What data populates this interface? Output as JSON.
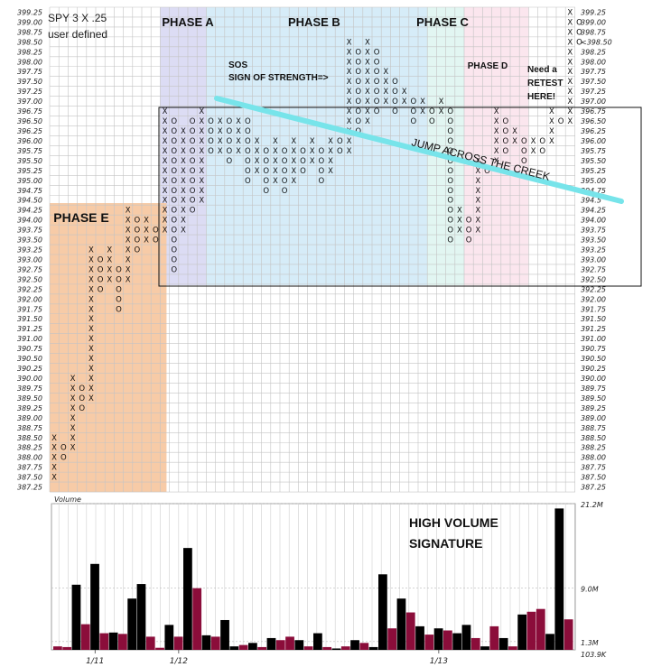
{
  "header": {
    "symbol_line": "SPY 3 X .25",
    "method_line": "user defined"
  },
  "colors": {
    "phase_a": "#dcdcf4",
    "phase_b": "#d6ecf8",
    "phase_c": "#e2f6f2",
    "phase_d": "#fbe6ee",
    "phase_e": "#f7cba7",
    "trendline": "#77e4ea",
    "volume_up": "#000000",
    "volume_down": "#8b0d3a",
    "current_price": "#cc2244"
  },
  "chart_data": [
    {
      "type": "point-and-figure",
      "box_size": 0.25,
      "reversal": 3,
      "y_ticks": [
        "399.25",
        "399.00",
        "398.75",
        "398.50",
        "398.25",
        "398.00",
        "397.75",
        "397.50",
        "397.25",
        "397.00",
        "396.75",
        "396.50",
        "396.25",
        "396.00",
        "395.75",
        "395.50",
        "395.25",
        "395.00",
        "394.75",
        "394.50",
        "394.25",
        "394.00",
        "393.75",
        "393.50",
        "393.25",
        "393.00",
        "392.75",
        "392.50",
        "392.25",
        "392.00",
        "391.75",
        "391.50",
        "391.25",
        "391.00",
        "390.75",
        "390.50",
        "390.25",
        "390.00",
        "389.75",
        "389.50",
        "389.25",
        "389.00",
        "388.75",
        "388.50",
        "388.25",
        "388.00",
        "387.75",
        "387.50",
        "387.25"
      ],
      "right_ticks": [
        "399.25",
        "399.00",
        "398.75",
        "<398.50",
        "398.25",
        "398.00",
        "397.75",
        "397.50",
        "397.25",
        "397.00",
        "396.75",
        "396.50",
        "396.25",
        "396.00",
        "395.75",
        "395.50",
        "395.25",
        "395.00",
        "394.75",
        "394.5",
        "394.25",
        "394.00",
        "393.75",
        "393.50",
        "393.25",
        "393.00",
        "392.75",
        "392.50",
        "392.25",
        "392.00",
        "391.75",
        "391.50",
        "391.25",
        "391.00",
        "390.75",
        "390.50",
        "390.25",
        "390.00",
        "389.75",
        "389.50",
        "389.25",
        "389.00",
        "388.75",
        "388.50",
        "388.25",
        "388.00",
        "387.75",
        "387.50",
        "387.25"
      ],
      "ylim": [
        387.25,
        399.25
      ],
      "current_price": "398.50",
      "columns": [
        {
          "type": "X",
          "low": 387.5,
          "high": 388.5
        },
        {
          "type": "O",
          "low": 388.0,
          "high": 388.25
        },
        {
          "type": "X",
          "low": 388.25,
          "high": 390.0
        },
        {
          "type": "O",
          "low": 389.25,
          "high": 389.75
        },
        {
          "type": "X",
          "low": 389.5,
          "high": 393.25
        },
        {
          "type": "O",
          "low": 392.25,
          "high": 393.0
        },
        {
          "type": "X",
          "low": 392.5,
          "high": 393.25
        },
        {
          "type": "O",
          "low": 391.75,
          "high": 392.75
        },
        {
          "type": "X",
          "low": 392.5,
          "high": 394.25
        },
        {
          "type": "O",
          "low": 393.25,
          "high": 394.0
        },
        {
          "type": "X",
          "low": 393.5,
          "high": 394.0
        },
        {
          "type": "O",
          "low": 393.5,
          "high": 393.75
        },
        {
          "type": "X",
          "low": 393.75,
          "high": 396.75
        },
        {
          "type": "O",
          "low": 392.75,
          "high": 396.5
        },
        {
          "type": "X",
          "low": 393.75,
          "high": 396.25
        },
        {
          "type": "O",
          "low": 394.25,
          "high": 396.5
        },
        {
          "type": "X",
          "low": 394.5,
          "high": 396.75
        },
        {
          "type": "O",
          "low": 395.75,
          "high": 396.5
        },
        {
          "type": "X",
          "low": 395.75,
          "high": 396.5
        },
        {
          "type": "O",
          "low": 395.5,
          "high": 396.5
        },
        {
          "type": "X",
          "low": 395.75,
          "high": 396.5
        },
        {
          "type": "O",
          "low": 395.0,
          "high": 396.5
        },
        {
          "type": "X",
          "low": 395.25,
          "high": 396.0
        },
        {
          "type": "O",
          "low": 394.75,
          "high": 395.75
        },
        {
          "type": "X",
          "low": 395.0,
          "high": 396.0
        },
        {
          "type": "O",
          "low": 394.75,
          "high": 395.75
        },
        {
          "type": "X",
          "low": 395.0,
          "high": 396.0
        },
        {
          "type": "O",
          "low": 395.25,
          "high": 395.75
        },
        {
          "type": "X",
          "low": 395.5,
          "high": 396.0
        },
        {
          "type": "O",
          "low": 395.0,
          "high": 395.75
        },
        {
          "type": "X",
          "low": 395.25,
          "high": 396.0
        },
        {
          "type": "O",
          "low": 395.75,
          "high": 396.0
        },
        {
          "type": "X",
          "low": 395.75,
          "high": 398.5
        },
        {
          "type": "O",
          "low": 396.25,
          "high": 398.25
        },
        {
          "type": "X",
          "low": 396.5,
          "high": 398.5
        },
        {
          "type": "O",
          "low": 396.75,
          "high": 398.25
        },
        {
          "type": "X",
          "low": 397.0,
          "high": 397.75
        },
        {
          "type": "O",
          "low": 396.75,
          "high": 397.5
        },
        {
          "type": "X",
          "low": 397.0,
          "high": 397.25
        },
        {
          "type": "O",
          "low": 396.5,
          "high": 397.0
        },
        {
          "type": "X",
          "low": 396.75,
          "high": 397.0
        },
        {
          "type": "O",
          "low": 396.5,
          "high": 396.75
        },
        {
          "type": "X",
          "low": 396.75,
          "high": 397.0
        },
        {
          "type": "O",
          "low": 393.5,
          "high": 396.75
        },
        {
          "type": "X",
          "low": 393.75,
          "high": 394.25
        },
        {
          "type": "O",
          "low": 393.5,
          "high": 394.0
        },
        {
          "type": "X",
          "low": 393.75,
          "high": 395.5
        },
        {
          "type": "O",
          "low": 395.25,
          "high": 395.25
        },
        {
          "type": "X",
          "low": 395.5,
          "high": 396.75
        },
        {
          "type": "O",
          "low": 395.75,
          "high": 396.5
        },
        {
          "type": "X",
          "low": 396.0,
          "high": 396.25
        },
        {
          "type": "O",
          "low": 395.5,
          "high": 396.0
        },
        {
          "type": "X",
          "low": 395.75,
          "high": 396.0
        },
        {
          "type": "O",
          "low": 395.75,
          "high": 396.0
        },
        {
          "type": "X",
          "low": 396.0,
          "high": 396.75
        },
        {
          "type": "O",
          "low": 396.5,
          "high": 396.5
        },
        {
          "type": "X",
          "low": 396.5,
          "high": 399.25
        },
        {
          "type": "O",
          "low": 398.5,
          "high": 399.0
        }
      ],
      "phases": [
        {
          "label": "PHASE A",
          "col_start": 12,
          "col_end": 17
        },
        {
          "label": "PHASE B",
          "col_start": 17,
          "col_end": 41
        },
        {
          "label": "PHASE C",
          "col_start": 41,
          "col_end": 45
        },
        {
          "label": "PHASE D",
          "col_start": 45,
          "col_end": 52
        },
        {
          "label": "PHASE E",
          "col_start": 0,
          "col_end": 12
        }
      ],
      "annotations": {
        "phase_a": "PHASE A",
        "phase_b": "PHASE B",
        "phase_c": "PHASE C",
        "phase_d": "PHASE D",
        "phase_e": "PHASE E",
        "sos_line1": "SOS",
        "sos_line2": "SIGN OF STRENGTH=>",
        "retest_line1": "Need a",
        "retest_line2": "RETEST",
        "retest_line3": "HERE!",
        "creek": "JUMP ACROSS THE CREEK"
      }
    },
    {
      "type": "bar",
      "title": "Volume",
      "y_ticks": [
        "21.2M",
        "9.0M",
        "1.3M",
        "103.9K"
      ],
      "x_labels": [
        "1/11",
        "1/12",
        "1/13"
      ],
      "values_m": [
        0.6,
        0.5,
        9.5,
        3.8,
        12.5,
        2.5,
        2.6,
        2.4,
        7.5,
        9.6,
        2.0,
        0.4,
        3.7,
        2.0,
        14.8,
        9.0,
        2.2,
        2.0,
        4.4,
        0.6,
        0.8,
        1.1,
        0.5,
        1.8,
        1.5,
        2.0,
        1.5,
        0.6,
        2.5,
        0.5,
        0.3,
        0.6,
        1.5,
        1.1,
        0.5,
        11.0,
        3.2,
        7.5,
        5.5,
        3.5,
        2.3,
        3.2,
        2.9,
        2.5,
        3.7,
        1.8,
        0.6,
        3.5,
        1.8,
        0.6,
        5.2,
        5.6,
        6.0,
        2.4,
        20.5,
        4.5
      ],
      "colors": [
        "down",
        "down",
        "up",
        "down",
        "up",
        "down",
        "up",
        "down",
        "up",
        "up",
        "down",
        "down",
        "up",
        "down",
        "up",
        "down",
        "up",
        "down",
        "up",
        "up",
        "down",
        "up",
        "down",
        "up",
        "down",
        "down",
        "up",
        "down",
        "up",
        "down",
        "up",
        "down",
        "up",
        "down",
        "up",
        "up",
        "down",
        "up",
        "down",
        "up",
        "down",
        "up",
        "down",
        "up",
        "up",
        "down",
        "up",
        "down",
        "up",
        "down",
        "up",
        "down",
        "down",
        "up",
        "up",
        "down"
      ],
      "annotation_line1": "HIGH VOLUME",
      "annotation_line2": "SIGNATURE"
    }
  ]
}
